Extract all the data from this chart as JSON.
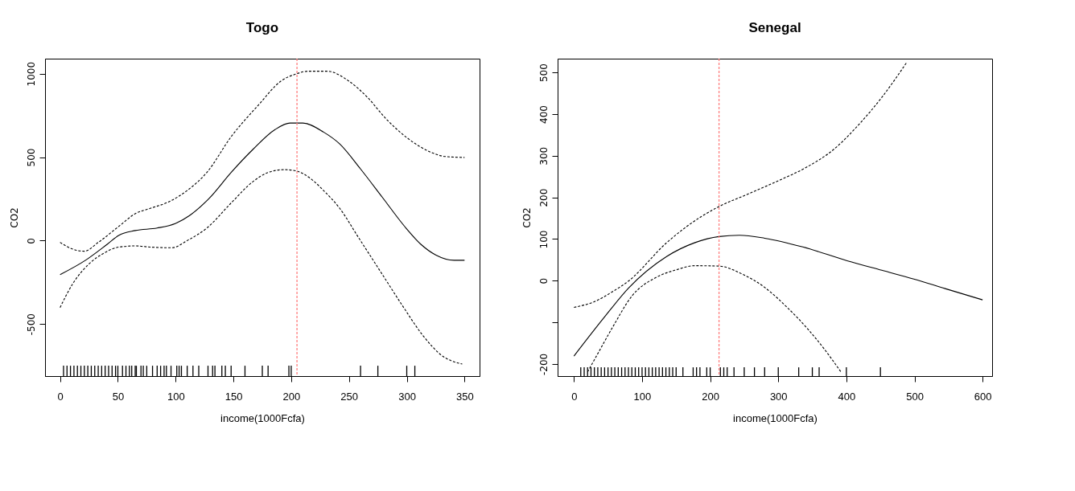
{
  "chart_data": [
    {
      "type": "line",
      "title": "Togo",
      "xlabel": "income(1000Fcfa)",
      "ylabel": "CO2",
      "xlim": [
        -13,
        363
      ],
      "ylim": [
        -812,
        1090
      ],
      "xticks": [
        0,
        50,
        100,
        150,
        200,
        250,
        300,
        350
      ],
      "yticks": [
        -500,
        0,
        500,
        1000
      ],
      "grid": false,
      "ref_lines": [
        {
          "axis": "x",
          "value": 205,
          "color": "#ff7f7f",
          "line_style": "dashed"
        }
      ],
      "series": [
        {
          "color": "#000000",
          "line_style": "solid",
          "x": [
            0,
            22,
            41,
            51,
            65,
            84,
            100,
            112,
            129,
            148,
            167,
            186,
            199,
            210,
            228,
            242,
            260,
            279,
            298,
            312,
            325,
            341,
            350
          ],
          "values": [
            -204,
            -118,
            -21,
            32,
            60,
            75,
            103,
            150,
            253,
            408,
            547,
            665,
            704,
            704,
            650,
            579,
            429,
            258,
            86,
            -21,
            -86,
            -118,
            -118
          ]
        },
        {
          "color": "#000000",
          "line_style": "dashed",
          "x": [
            0,
            10,
            21,
            33,
            51,
            65,
            78,
            94,
            110,
            127,
            148,
            172,
            191,
            204,
            215,
            231,
            250,
            266,
            282,
            301,
            320,
            333,
            350
          ],
          "values": [
            -11,
            -49,
            -64,
            -11,
            86,
            161,
            193,
            232,
            300,
            408,
            622,
            815,
            955,
            998,
            1015,
            1015,
            955,
            858,
            730,
            612,
            532,
            504,
            498
          ]
        },
        {
          "color": "#000000",
          "line_style": "dashed",
          "x": [
            0,
            11,
            25,
            38,
            51,
            65,
            78,
            97,
            110,
            127,
            148,
            167,
            180,
            194,
            204,
            218,
            228,
            242,
            258,
            277,
            296,
            314,
            330,
            348
          ],
          "values": [
            -401,
            -258,
            -140,
            -75,
            -39,
            -32,
            -39,
            -43,
            0,
            75,
            225,
            354,
            408,
            425,
            418,
            365,
            300,
            193,
            21,
            -183,
            -387,
            -569,
            -687,
            -740
          ]
        },
        {
          "type": "bar",
          "color": "#000000",
          "x": [
            3,
            6,
            9,
            12,
            15,
            18,
            21,
            24,
            27,
            30,
            33,
            36,
            39,
            42,
            45,
            48,
            50,
            54,
            57,
            60,
            62,
            65,
            66,
            70,
            72,
            75,
            80,
            84,
            87,
            90,
            92,
            96,
            101,
            103,
            105,
            110,
            115,
            120,
            128,
            132,
            134,
            140,
            143,
            148,
            160,
            175,
            180,
            198,
            200,
            260,
            275,
            300,
            307
          ],
          "base": [
            -812,
            -812,
            -812,
            -812,
            -812,
            -812,
            -812,
            -812,
            -812,
            -812,
            -812,
            -812,
            -812,
            -812,
            -812,
            -812,
            -812,
            -812,
            -812,
            -812,
            -812,
            -812,
            -812,
            -812,
            -812,
            -812,
            -812,
            -812,
            -812,
            -812,
            -812,
            -812,
            -812,
            -812,
            -812,
            -812,
            -812,
            -812,
            -812,
            -812,
            -812,
            -812,
            -812,
            -812,
            -812,
            -812,
            -812,
            -812,
            -812,
            -812,
            -812,
            -812,
            -812
          ],
          "values": [
            62,
            62,
            62,
            62,
            62,
            62,
            62,
            62,
            62,
            62,
            62,
            62,
            62,
            62,
            62,
            62,
            62,
            62,
            62,
            62,
            62,
            62,
            62,
            62,
            62,
            62,
            62,
            62,
            62,
            62,
            62,
            62,
            62,
            62,
            62,
            62,
            62,
            62,
            62,
            62,
            62,
            62,
            62,
            62,
            62,
            62,
            62,
            62,
            62,
            62,
            62,
            62,
            62
          ]
        }
      ]
    },
    {
      "type": "line",
      "title": "Senegal",
      "xlabel": "income(1000Fcfa)",
      "ylabel": "CO2",
      "xlim": [
        -24,
        614
      ],
      "ylim": [
        -229,
        533
      ],
      "xticks": [
        0,
        100,
        200,
        300,
        400,
        500,
        600
      ],
      "yticks": [
        -200,
        {
          "value": -100,
          "label": null
        },
        0,
        100,
        200,
        300,
        400,
        500
      ],
      "grid": false,
      "ref_lines": [
        {
          "axis": "x",
          "value": 213,
          "color": "#ff7f7f",
          "line_style": "dashed"
        }
      ],
      "series": [
        {
          "color": "#000000",
          "line_style": "solid",
          "x": [
            0,
            43,
            80,
            136,
            177,
            213,
            243,
            280,
            336,
            401,
            452,
            499,
            545,
            600
          ],
          "values": [
            -181,
            -91,
            -18,
            58,
            91,
            106,
            109,
            102,
            81,
            48,
            25,
            4,
            -19,
            -46
          ]
        },
        {
          "color": "#000000",
          "line_style": "dashed",
          "x": [
            0,
            29,
            57,
            80,
            136,
            187,
            213,
            257,
            303,
            340,
            382,
            420,
            452,
            489
          ],
          "values": [
            -64,
            -51,
            -26,
            -1,
            91,
            154,
            178,
            209,
            242,
            271,
            316,
            378,
            440,
            525
          ]
        },
        {
          "color": "#000000",
          "line_style": "dashed",
          "x": [
            20,
            33,
            57,
            85,
            122,
            150,
            177,
            213,
            247,
            280,
            313,
            345,
            368,
            392
          ],
          "values": [
            -219,
            -181,
            -111,
            -37,
            9,
            26,
            36,
            35,
            16,
            -16,
            -64,
            -119,
            -165,
            -219
          ]
        },
        {
          "type": "bar",
          "color": "#000000",
          "x": [
            10,
            15,
            20,
            25,
            30,
            35,
            40,
            45,
            50,
            55,
            60,
            65,
            70,
            75,
            80,
            85,
            90,
            95,
            100,
            105,
            110,
            115,
            120,
            125,
            130,
            135,
            140,
            145,
            150,
            160,
            175,
            180,
            185,
            195,
            200,
            215,
            220,
            225,
            235,
            250,
            265,
            280,
            300,
            330,
            350,
            360,
            400,
            450
          ],
          "base": [
            -229,
            -229,
            -229,
            -229,
            -229,
            -229,
            -229,
            -229,
            -229,
            -229,
            -229,
            -229,
            -229,
            -229,
            -229,
            -229,
            -229,
            -229,
            -229,
            -229,
            -229,
            -229,
            -229,
            -229,
            -229,
            -229,
            -229,
            -229,
            -229,
            -229,
            -229,
            -229,
            -229,
            -229,
            -229,
            -229,
            -229,
            -229,
            -229,
            -229,
            -229,
            -229,
            -229,
            -229,
            -229,
            -229,
            -229,
            -229
          ],
          "values": [
            21,
            21,
            21,
            21,
            21,
            21,
            21,
            21,
            21,
            21,
            21,
            21,
            21,
            21,
            21,
            21,
            21,
            21,
            21,
            21,
            21,
            21,
            21,
            21,
            21,
            21,
            21,
            21,
            21,
            21,
            21,
            21,
            21,
            21,
            21,
            21,
            21,
            21,
            21,
            21,
            21,
            21,
            21,
            21,
            21,
            21,
            21,
            21
          ]
        }
      ]
    }
  ]
}
